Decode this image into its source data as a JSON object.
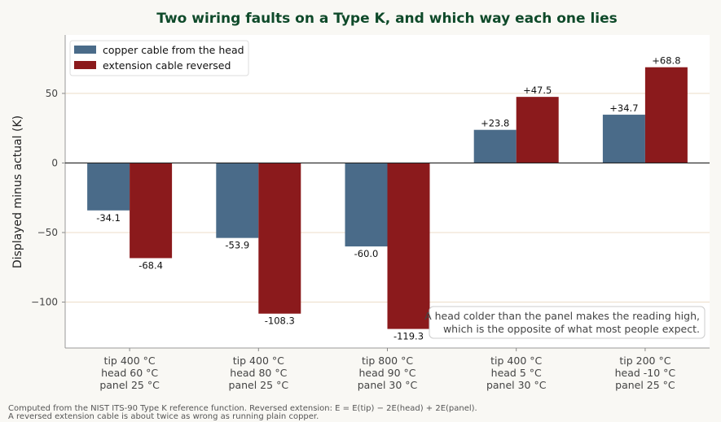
{
  "chart_data": {
    "type": "bar",
    "title": "Two wiring faults on a Type K, and which way each one lies",
    "ylabel": "Displayed minus actual (K)",
    "xlabel": "",
    "ylim": [
      -133,
      92
    ],
    "yticks": [
      50,
      0,
      -50,
      -100
    ],
    "ytick_labels": [
      "50",
      "0",
      "−50",
      "−100"
    ],
    "grid": "horizontal",
    "legend_position": "top-left",
    "categories": [
      [
        "tip 400 °C",
        "head 60 °C",
        "panel 25 °C"
      ],
      [
        "tip 400 °C",
        "head 80 °C",
        "panel 25 °C"
      ],
      [
        "tip 800 °C",
        "head 90 °C",
        "panel 30 °C"
      ],
      [
        "tip 400 °C",
        "head 5 °C",
        "panel 30 °C"
      ],
      [
        "tip 200 °C",
        "head -10 °C",
        "panel 25 °C"
      ]
    ],
    "series": [
      {
        "name": "copper cable from the head",
        "color": "#4a6b89",
        "values": [
          -34.1,
          -53.9,
          -60.0,
          23.8,
          34.7
        ],
        "labels": [
          "-34.1",
          "-53.9",
          "-60.0",
          "+23.8",
          "+34.7"
        ]
      },
      {
        "name": "extension cable reversed",
        "color": "#8b1a1c",
        "values": [
          -68.4,
          -108.3,
          -119.3,
          47.5,
          68.8
        ],
        "labels": [
          "-68.4",
          "-108.3",
          "-119.3",
          "+47.5",
          "+68.8"
        ]
      }
    ],
    "annotation": [
      "A head colder than the panel makes the reading high,",
      "which is the opposite of what most people expect."
    ]
  },
  "footnote": [
    "Computed from the NIST ITS-90 Type K reference function. Reversed extension: E = E(tip) − 2E(head) + 2E(panel).",
    "A reversed extension cable is about twice as wrong as running plain copper."
  ]
}
